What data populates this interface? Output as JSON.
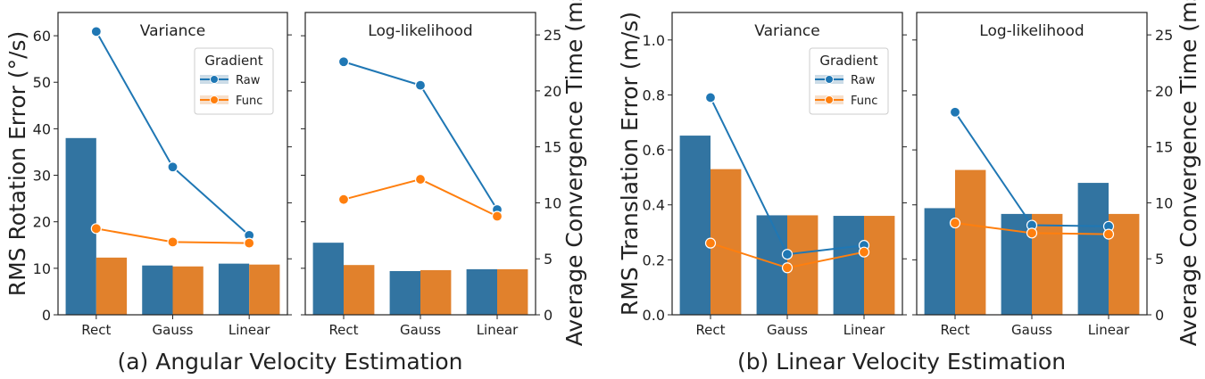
{
  "colors": {
    "Raw": "#3274a1",
    "Func": "#e1812c",
    "line_Raw": "#1f77b4",
    "line_Func": "#ff7f0e"
  },
  "legend": {
    "title": "Gradient",
    "entries": [
      "Raw",
      "Func"
    ]
  },
  "groups": [
    {
      "caption": "(a) Angular Velocity Estimation",
      "left_ylabel": "RMS Rotation Error (°/s)",
      "right_ylabel": "Average Convergence Time (ms)",
      "left_ylim": [
        0,
        65
      ],
      "left_ticks": [
        "0",
        "10",
        "20",
        "30",
        "40",
        "50",
        "60"
      ],
      "left_tick_values": [
        0,
        10,
        20,
        30,
        40,
        50,
        60
      ],
      "right_ylim": [
        0,
        27
      ],
      "right_ticks": [
        "0",
        "5",
        "10",
        "15",
        "20",
        "25"
      ],
      "right_tick_values": [
        0,
        5,
        10,
        15,
        20,
        25
      ]
    },
    {
      "caption": "(b) Linear Velocity Estimation",
      "left_ylabel": "RMS Translation Error (m/s)",
      "right_ylabel": "Average Convergence Time (ms)",
      "left_ylim": [
        0,
        1.1
      ],
      "left_ticks": [
        "0.0",
        "0.2",
        "0.4",
        "0.6",
        "0.8",
        "1.0"
      ],
      "left_tick_values": [
        0,
        0.2,
        0.4,
        0.6,
        0.8,
        1.0
      ],
      "right_ylim": [
        0,
        27
      ],
      "right_ticks": [
        "0",
        "5",
        "10",
        "15",
        "20",
        "25"
      ],
      "right_tick_values": [
        0,
        5,
        10,
        15,
        20,
        25
      ]
    }
  ],
  "chart_data": [
    {
      "type": "bar",
      "group": 0,
      "title": "Variance",
      "categories": [
        "Rect",
        "Gauss",
        "Linear"
      ],
      "legend": true,
      "bar_series": [
        {
          "name": "Raw",
          "values": [
            38.0,
            10.6,
            11.0
          ]
        },
        {
          "name": "Func",
          "values": [
            12.3,
            10.4,
            10.8
          ]
        }
      ],
      "line_series_ms": [
        {
          "name": "Raw",
          "values": [
            25.3,
            13.2,
            7.1
          ]
        },
        {
          "name": "Func",
          "values": [
            7.7,
            6.5,
            6.4
          ]
        }
      ]
    },
    {
      "type": "bar",
      "group": 0,
      "title": "Log-likelihood",
      "categories": [
        "Rect",
        "Gauss",
        "Linear"
      ],
      "legend": false,
      "bar_series": [
        {
          "name": "Raw",
          "values": [
            15.5,
            9.4,
            9.8
          ]
        },
        {
          "name": "Func",
          "values": [
            10.7,
            9.6,
            9.8
          ]
        }
      ],
      "line_series_ms": [
        {
          "name": "Raw",
          "values": [
            22.6,
            20.5,
            9.4
          ]
        },
        {
          "name": "Func",
          "values": [
            10.3,
            12.1,
            8.8
          ]
        }
      ]
    },
    {
      "type": "bar",
      "group": 1,
      "title": "Variance",
      "categories": [
        "Rect",
        "Gauss",
        "Linear"
      ],
      "legend": true,
      "bar_series": [
        {
          "name": "Raw",
          "values": [
            0.652,
            0.362,
            0.36
          ]
        },
        {
          "name": "Func",
          "values": [
            0.53,
            0.362,
            0.36
          ]
        }
      ],
      "line_series_ms": [
        {
          "name": "Raw",
          "values": [
            19.4,
            5.4,
            6.2
          ]
        },
        {
          "name": "Func",
          "values": [
            6.4,
            4.2,
            5.6
          ]
        }
      ]
    },
    {
      "type": "bar",
      "group": 1,
      "title": "Log-likelihood",
      "categories": [
        "Rect",
        "Gauss",
        "Linear"
      ],
      "legend": false,
      "bar_series": [
        {
          "name": "Raw",
          "values": [
            0.388,
            0.367,
            0.48
          ]
        },
        {
          "name": "Func",
          "values": [
            0.527,
            0.367,
            0.367
          ]
        }
      ],
      "line_series_ms": [
        {
          "name": "Raw",
          "values": [
            18.1,
            8.0,
            7.9
          ]
        },
        {
          "name": "Func",
          "values": [
            8.2,
            7.3,
            7.2
          ]
        }
      ]
    }
  ]
}
